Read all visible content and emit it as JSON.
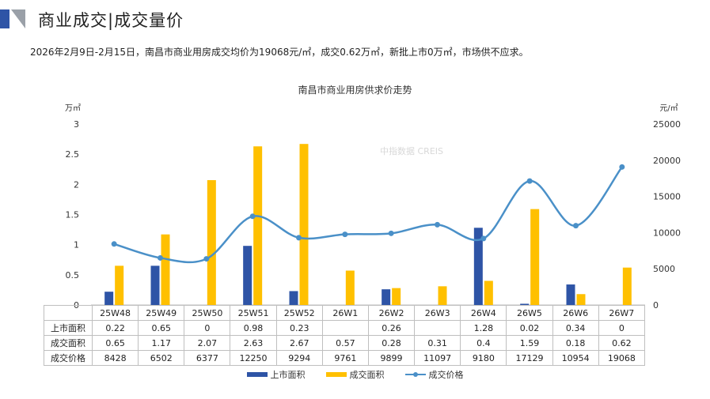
{
  "header": {
    "title": "商业成交|成交量价"
  },
  "summary": "2026年2月9日-2月15日，南昌市商业用房成交均价为19068元/㎡，成交0.62万㎡，新批上市0万㎡，市场供不应求。",
  "watermark": "中指数据 CREIS",
  "colors": {
    "supply": "#2e54a6",
    "deal": "#ffc000",
    "price": "#4a90c8"
  },
  "chart_data": {
    "type": "bar+line",
    "title": "南昌市商业用房供求价走势",
    "ylabel_left": "万㎡",
    "ylabel_right": "元/㎡",
    "ylim_left": [
      0,
      3
    ],
    "ylim_right": [
      0,
      25000
    ],
    "yticks_left": [
      "0",
      "0.5",
      "1",
      "1.5",
      "2",
      "2.5",
      "3"
    ],
    "yticks_right": [
      "0",
      "5000",
      "10000",
      "15000",
      "20000",
      "25000"
    ],
    "categories": [
      "25W48",
      "25W49",
      "25W50",
      "25W51",
      "25W52",
      "26W1",
      "26W2",
      "26W3",
      "26W4",
      "26W5",
      "26W6",
      "26W7"
    ],
    "series": [
      {
        "name": "上市面积",
        "type": "bar",
        "axis": "left",
        "values": [
          0.22,
          0.65,
          0,
          0.98,
          0.23,
          null,
          0.26,
          null,
          1.28,
          0.02,
          0.34,
          0
        ]
      },
      {
        "name": "成交面积",
        "type": "bar",
        "axis": "left",
        "values": [
          0.65,
          1.17,
          2.07,
          2.63,
          2.67,
          0.57,
          0.28,
          0.31,
          0.4,
          1.59,
          0.18,
          0.62
        ]
      },
      {
        "name": "成交价格",
        "type": "line",
        "axis": "right",
        "values": [
          8428,
          6502,
          6377,
          12250,
          9294,
          9761,
          9899,
          11097,
          9180,
          17129,
          10954,
          19068
        ]
      }
    ],
    "legend": "bottom"
  }
}
